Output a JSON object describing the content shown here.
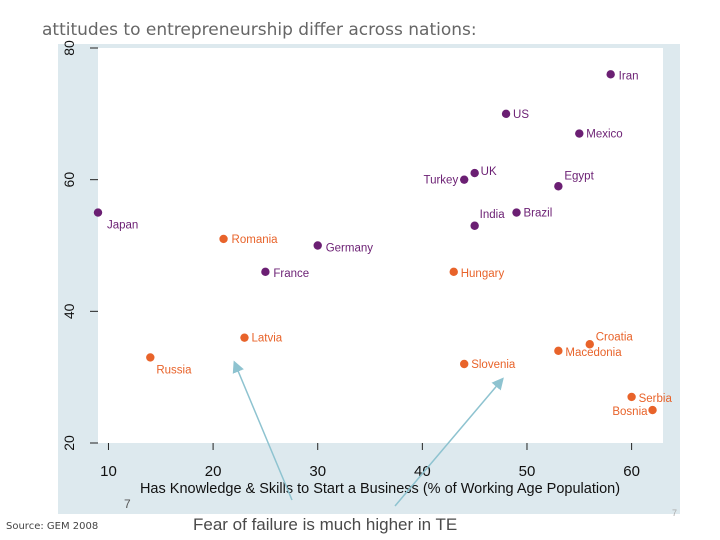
{
  "slide": {
    "title": "attitudes to entrepreneurship differ across nations:",
    "source": "Source: GEM 2008",
    "caption": "Fear of failure is much higher in TE",
    "page_number": "7",
    "subfig_number": "7"
  },
  "colors": {
    "panel_background": "#dde9ee",
    "plot_background": "#ffffff",
    "developed_series": "#6b1f73",
    "transition_series": "#e8632a",
    "arrow": "#8ec3d0"
  },
  "chart_data": {
    "type": "scatter",
    "xlabel": "Has Knowledge & Skills to Start a Business (% of Working Age Population)",
    "ylabel": "",
    "xlim": [
      9,
      63
    ],
    "ylim": [
      20,
      80
    ],
    "x_ticks": [
      "10",
      "20",
      "30",
      "40",
      "50",
      "60"
    ],
    "y_ticks": [
      "20",
      "40",
      "60",
      "80"
    ],
    "grid": false,
    "legend": "none",
    "series": [
      {
        "color": "#6b1f73",
        "points": [
          {
            "label": "Iran",
            "x": 58,
            "y": 76
          },
          {
            "label": "US",
            "x": 48,
            "y": 70
          },
          {
            "label": "Mexico",
            "x": 55,
            "y": 67
          },
          {
            "label": "UK",
            "x": 45,
            "y": 61
          },
          {
            "label": "Turkey",
            "x": 44,
            "y": 60
          },
          {
            "label": "Egypt",
            "x": 53,
            "y": 59
          },
          {
            "label": "Brazil",
            "x": 49,
            "y": 55
          },
          {
            "label": "India",
            "x": 45,
            "y": 53
          },
          {
            "label": "Japan",
            "x": 9,
            "y": 55
          },
          {
            "label": "Germany",
            "x": 30,
            "y": 50
          },
          {
            "label": "France",
            "x": 25,
            "y": 46
          }
        ]
      },
      {
        "color": "#e8632a",
        "points": [
          {
            "label": "Romania",
            "x": 21,
            "y": 51
          },
          {
            "label": "Hungary",
            "x": 43,
            "y": 46
          },
          {
            "label": "Latvia",
            "x": 23,
            "y": 36
          },
          {
            "label": "Russia",
            "x": 14,
            "y": 33
          },
          {
            "label": "Slovenia",
            "x": 44,
            "y": 32
          },
          {
            "label": "Croatia",
            "x": 56,
            "y": 35
          },
          {
            "label": "Macedonia",
            "x": 53,
            "y": 34
          },
          {
            "label": "Serbia",
            "x": 60,
            "y": 27
          },
          {
            "label": "Bosnia",
            "x": 62,
            "y": 25
          }
        ]
      }
    ]
  }
}
